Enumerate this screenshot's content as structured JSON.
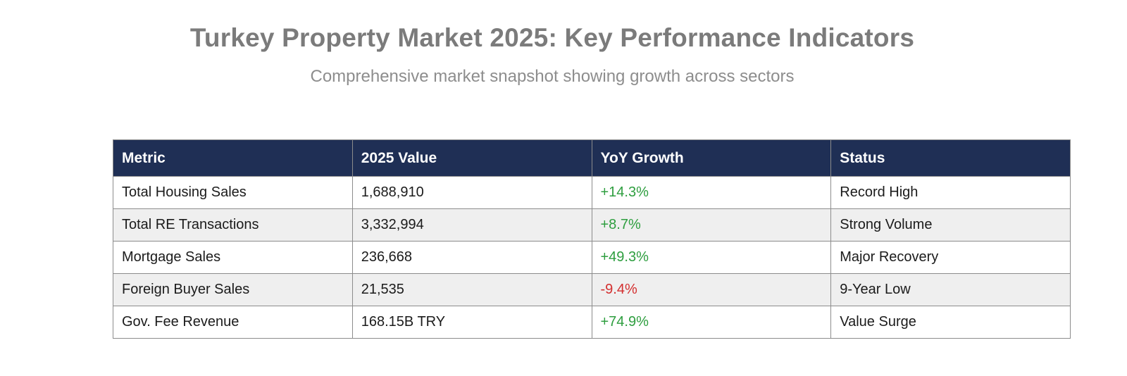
{
  "page": {
    "title": "Turkey Property Market 2025: Key Performance Indicators",
    "subtitle": "Comprehensive market snapshot showing growth across sectors"
  },
  "colors": {
    "header_bg": "#1f2f55",
    "header_text": "#ffffff",
    "positive": "#2e9e3f",
    "negative": "#d32f2f",
    "row_alt_bg": "#efefef",
    "border": "#8c8c8c",
    "title_text": "#7b7b7b",
    "subtitle_text": "#8d8d8d"
  },
  "table": {
    "columns": [
      "Metric",
      "2025 Value",
      "YoY Growth",
      "Status"
    ],
    "rows": [
      {
        "metric": "Total Housing Sales",
        "value": "1,688,910",
        "growth": "+14.3%",
        "growth_direction": "positive",
        "status": "Record High"
      },
      {
        "metric": "Total RE Transactions",
        "value": "3,332,994",
        "growth": "+8.7%",
        "growth_direction": "positive",
        "status": "Strong Volume"
      },
      {
        "metric": "Mortgage Sales",
        "value": "236,668",
        "growth": "+49.3%",
        "growth_direction": "positive",
        "status": "Major Recovery"
      },
      {
        "metric": "Foreign Buyer Sales",
        "value": "21,535",
        "growth": "-9.4%",
        "growth_direction": "negative",
        "status": "9-Year Low"
      },
      {
        "metric": "Gov. Fee Revenue",
        "value": "168.15B TRY",
        "growth": "+74.9%",
        "growth_direction": "positive",
        "status": "Value Surge"
      }
    ]
  },
  "chart_data": {
    "type": "table",
    "title": "Turkey Property Market 2025: Key Performance Indicators",
    "subtitle": "Comprehensive market snapshot showing growth across sectors",
    "columns": [
      "Metric",
      "2025 Value",
      "YoY Growth",
      "Status"
    ],
    "rows": [
      [
        "Total Housing Sales",
        "1,688,910",
        "+14.3%",
        "Record High"
      ],
      [
        "Total RE Transactions",
        "3,332,994",
        "+8.7%",
        "Strong Volume"
      ],
      [
        "Mortgage Sales",
        "236,668",
        "+49.3%",
        "Major Recovery"
      ],
      [
        "Foreign Buyer Sales",
        "21,535",
        "-9.4%",
        "9-Year Low"
      ],
      [
        "Gov. Fee Revenue",
        "168.15B TRY",
        "+74.9%",
        "Value Surge"
      ]
    ],
    "yoy_growth_numeric": [
      14.3,
      8.7,
      49.3,
      -9.4,
      74.9
    ],
    "layout": {
      "header_style": "dark-navy",
      "zebra_striping": true,
      "growth_color_coded": true
    }
  }
}
